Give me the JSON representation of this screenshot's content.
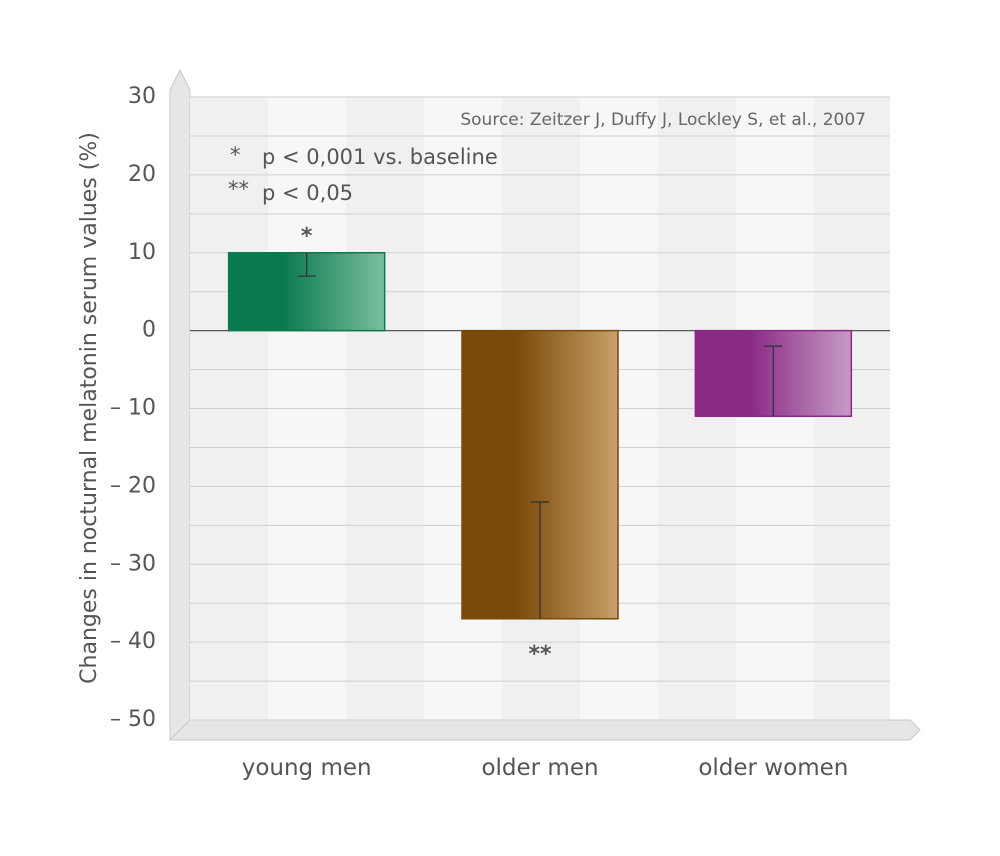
{
  "chart_data": {
    "type": "bar",
    "categories": [
      "young men",
      "older men",
      "older women"
    ],
    "values": [
      10,
      -37,
      -11
    ],
    "error_bar_ends": [
      7,
      -22,
      -2
    ],
    "significance": [
      "*",
      "**",
      ""
    ],
    "colors": {
      "young men": [
        "#0a7a4e",
        "#7bbf9f"
      ],
      "older men": [
        "#7a4a08",
        "#c9a06a"
      ],
      "older women": [
        "#8a2a86",
        "#c79bc6"
      ]
    },
    "ylabel": "Changes in nocturnal melatonin serum values (%)",
    "ylim": [
      -50,
      30
    ],
    "yticks": [
      30,
      20,
      10,
      0,
      -10,
      -20,
      -30,
      -40,
      -50
    ],
    "ytick_labels": [
      "30",
      "20",
      "10",
      "0",
      "– 10",
      "– 20",
      "– 30",
      "– 40",
      "– 50"
    ],
    "grid": true,
    "source": "Source: Zeitzer J, Duffy J, Lockley S, et al., 2007",
    "legend_notes": [
      {
        "symbol": "*",
        "text": "p < 0,001 vs. baseline"
      },
      {
        "symbol": "**",
        "text": "p < 0,05"
      }
    ]
  }
}
